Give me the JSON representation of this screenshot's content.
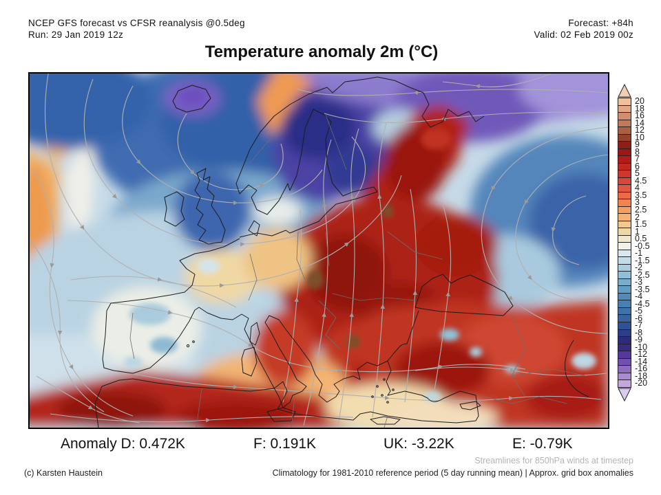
{
  "header": {
    "model_line": "NCEP GFS forecast vs CFSR reanalysis @0.5deg",
    "run_line": "Run: 29 Jan 2019 12z",
    "forecast_line": "Forecast: +84h",
    "valid_line": "Valid: 02 Feb 2019 00z"
  },
  "title": "Temperature anomaly 2m (°C)",
  "anomaly_summary": {
    "d": "Anomaly D: 0.472K",
    "f": "F: 0.191K",
    "uk": "UK: -3.22K",
    "e": "E: -0.79K"
  },
  "footnotes": {
    "streamlines": "Streamlines for 850hPa winds at timestep",
    "credit": "(c) Karsten Haustein",
    "climatology": "Climatology for 1981-2010 reference period (5 day running mean) | Approx. grid box anomalies"
  },
  "colorbar": {
    "over_color": "#f3cdb2",
    "under_color": "#dbcbee",
    "entries": [
      {
        "label": "20",
        "color": "#efbf9e"
      },
      {
        "label": "18",
        "color": "#e3a686"
      },
      {
        "label": "16",
        "color": "#d18f6f"
      },
      {
        "label": "14",
        "color": "#c07a57"
      },
      {
        "label": "12",
        "color": "#a95f41"
      },
      {
        "label": "10",
        "color": "#93422c"
      },
      {
        "label": "9",
        "color": "#8e1f18"
      },
      {
        "label": "8",
        "color": "#9f1614"
      },
      {
        "label": "7",
        "color": "#b21b19"
      },
      {
        "label": "6",
        "color": "#c22722"
      },
      {
        "label": "5",
        "color": "#cf372e"
      },
      {
        "label": "4.5",
        "color": "#da473a"
      },
      {
        "label": "4",
        "color": "#e25744"
      },
      {
        "label": "3.5",
        "color": "#ec6a45"
      },
      {
        "label": "3",
        "color": "#f0834e"
      },
      {
        "label": "2.5",
        "color": "#f49e61"
      },
      {
        "label": "2",
        "color": "#f6b275"
      },
      {
        "label": "1.5",
        "color": "#f3c88e"
      },
      {
        "label": "1",
        "color": "#edd7a3"
      },
      {
        "label": "0.5",
        "color": "#efe8cb"
      },
      {
        "label": "-0.5",
        "color": "#f1f1ea"
      },
      {
        "label": "-1",
        "color": "#d9e8ee"
      },
      {
        "label": "-1.5",
        "color": "#c2dcea"
      },
      {
        "label": "-2",
        "color": "#a9cde1"
      },
      {
        "label": "-2.5",
        "color": "#92bed8"
      },
      {
        "label": "-3",
        "color": "#79adcd"
      },
      {
        "label": "-3.5",
        "color": "#639dc6"
      },
      {
        "label": "-4",
        "color": "#4f8cba"
      },
      {
        "label": "-4.5",
        "color": "#4780b2"
      },
      {
        "label": "-5",
        "color": "#3f72a9"
      },
      {
        "label": "-6",
        "color": "#39629f"
      },
      {
        "label": "-7",
        "color": "#325095"
      },
      {
        "label": "-8",
        "color": "#2d3e88"
      },
      {
        "label": "-9",
        "color": "#2c2c7e"
      },
      {
        "label": "-10",
        "color": "#392b84"
      },
      {
        "label": "-12",
        "color": "#53399b"
      },
      {
        "label": "-14",
        "color": "#7150af"
      },
      {
        "label": "-16",
        "color": "#8e6cc0"
      },
      {
        "label": "-18",
        "color": "#a98ad0"
      },
      {
        "label": "-20",
        "color": "#c3a8df"
      }
    ]
  }
}
